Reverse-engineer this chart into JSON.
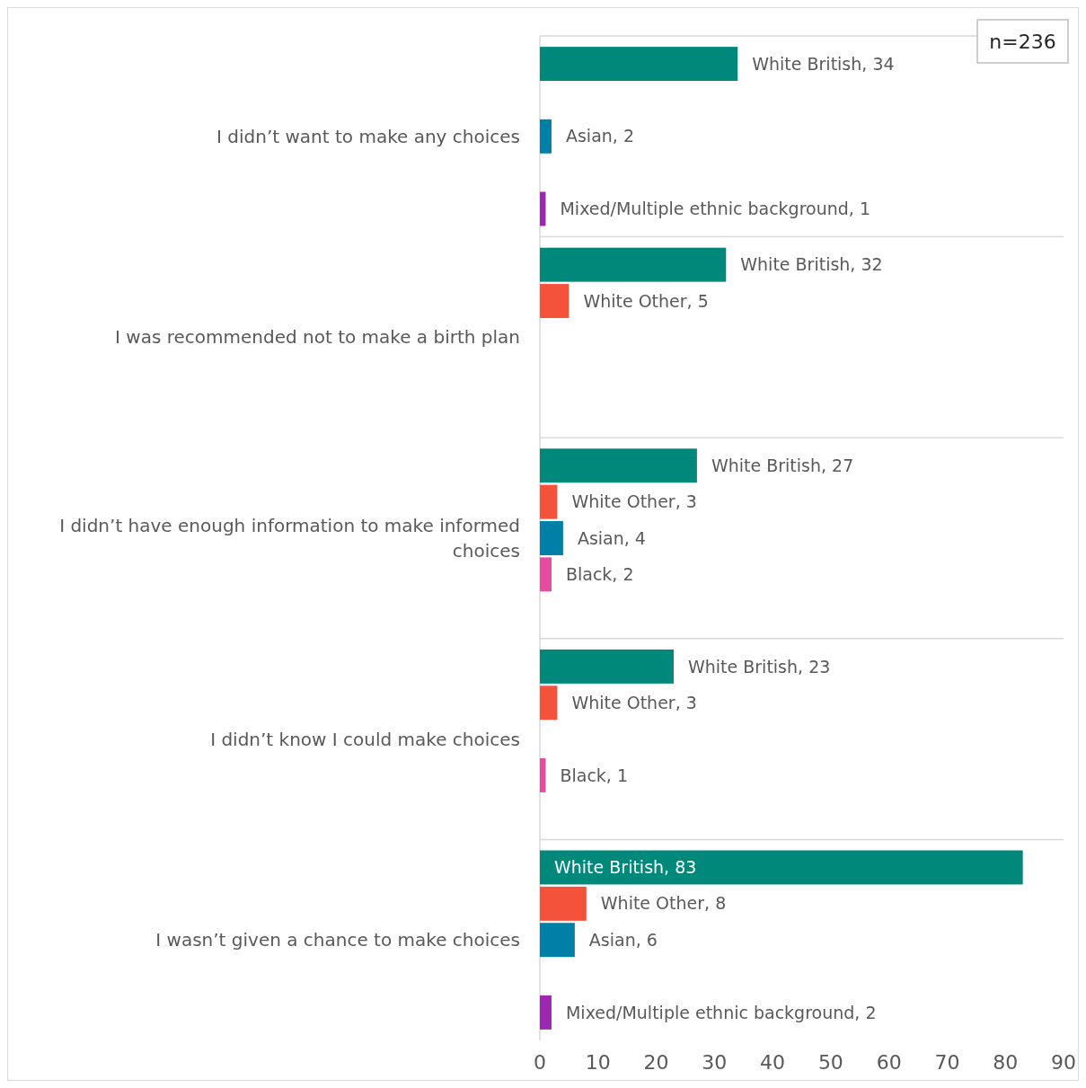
{
  "chart_data": {
    "type": "bar",
    "orientation": "horizontal",
    "categories": [
      "I didn’t want to make any choices",
      "I was recommended not to make a birth plan",
      "I didn’t have enough information to make informed choices",
      "I didn’t know I could make choices",
      "I wasn’t given a chance to make choices"
    ],
    "series": [
      {
        "color": "#00897b",
        "values": [
          34,
          32,
          27,
          23,
          83
        ],
        "value_labels": [
          "White British, 34",
          "White British, 32",
          "White British, 27",
          "White British, 23",
          "White British, 83"
        ]
      },
      {
        "color": "#f4523b",
        "values": [
          null,
          5,
          3,
          3,
          8
        ],
        "value_labels": [
          null,
          "White Other, 5",
          "White Other, 3",
          "White Other, 3",
          "White Other, 8"
        ]
      },
      {
        "color": "#0080a6",
        "values": [
          2,
          null,
          4,
          null,
          6
        ],
        "value_labels": [
          "Asian, 2",
          null,
          "Asian, 4",
          null,
          "Asian, 6"
        ]
      },
      {
        "color": "#e84aa0",
        "values": [
          null,
          null,
          2,
          1,
          null
        ],
        "value_labels": [
          null,
          null,
          "Black, 2",
          "Black, 1",
          null
        ]
      },
      {
        "color": "#9c27b0",
        "values": [
          1,
          null,
          null,
          null,
          2
        ],
        "value_labels": [
          "Mixed/Multiple ethnic background, 1",
          null,
          null,
          null,
          "Mixed/Multiple ethnic background, 2"
        ]
      }
    ],
    "xlim": [
      0,
      90
    ],
    "xticks": [
      0,
      10,
      20,
      30,
      40,
      50,
      60,
      70,
      80,
      90
    ],
    "grid": "y",
    "annotations": [
      "n=236"
    ]
  }
}
